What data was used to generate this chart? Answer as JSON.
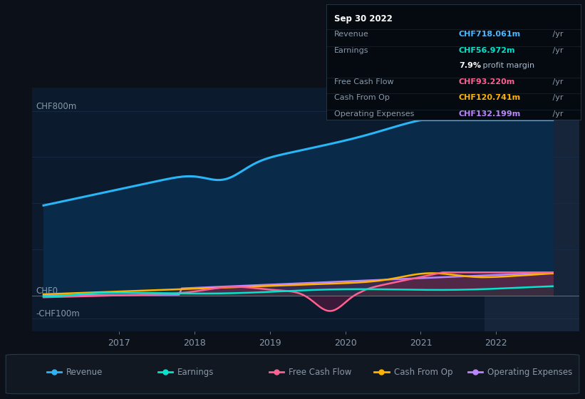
{
  "bg_color": "#0c1018",
  "plot_bg_color": "#0c1a2e",
  "highlight_bg": "#16253a",
  "grid_color": "#1a2f4a",
  "text_color": "#8899aa",
  "ylabel_top": "CHF800m",
  "ylabel_zero": "CHF0",
  "ylabel_neg": "-CHF100m",
  "x_ticks": [
    2017,
    2018,
    2019,
    2020,
    2021,
    2022
  ],
  "tooltip": {
    "date": "Sep 30 2022",
    "revenue_label": "Revenue",
    "revenue_value": "CHF718.061m",
    "revenue_suffix": " /yr",
    "revenue_color": "#4db8ff",
    "earnings_label": "Earnings",
    "earnings_value": "CHF56.972m",
    "earnings_suffix": " /yr",
    "earnings_color": "#00e5cc",
    "margin_text": "7.9%",
    "margin_text2": " profit margin",
    "margin_color_pct": "#ffffff",
    "margin_color_text": "#aabbcc",
    "fcf_label": "Free Cash Flow",
    "fcf_value": "CHF93.220m",
    "fcf_suffix": " /yr",
    "fcf_color": "#ff6090",
    "cashop_label": "Cash From Op",
    "cashop_value": "CHF120.741m",
    "cashop_suffix": " /yr",
    "cashop_color": "#ffb300",
    "opex_label": "Operating Expenses",
    "opex_value": "CHF132.199m",
    "opex_suffix": " /yr",
    "opex_color": "#bb86fc"
  },
  "revenue_color": "#29b6f6",
  "earnings_color": "#00e5cc",
  "fcf_color": "#ff6090",
  "cashop_color": "#ffb300",
  "opex_color": "#bb86fc",
  "revenue_fill": "#0a2a4a",
  "highlight_x_start": 2021.85,
  "ylim_top": 900,
  "ylim_bottom": -155,
  "xlim_left": 2015.85,
  "xlim_right": 2023.1,
  "legend": [
    {
      "label": "Revenue",
      "color": "#29b6f6"
    },
    {
      "label": "Earnings",
      "color": "#00e5cc"
    },
    {
      "label": "Free Cash Flow",
      "color": "#ff6090"
    },
    {
      "label": "Cash From Op",
      "color": "#ffb300"
    },
    {
      "label": "Operating Expenses",
      "color": "#bb86fc"
    }
  ]
}
